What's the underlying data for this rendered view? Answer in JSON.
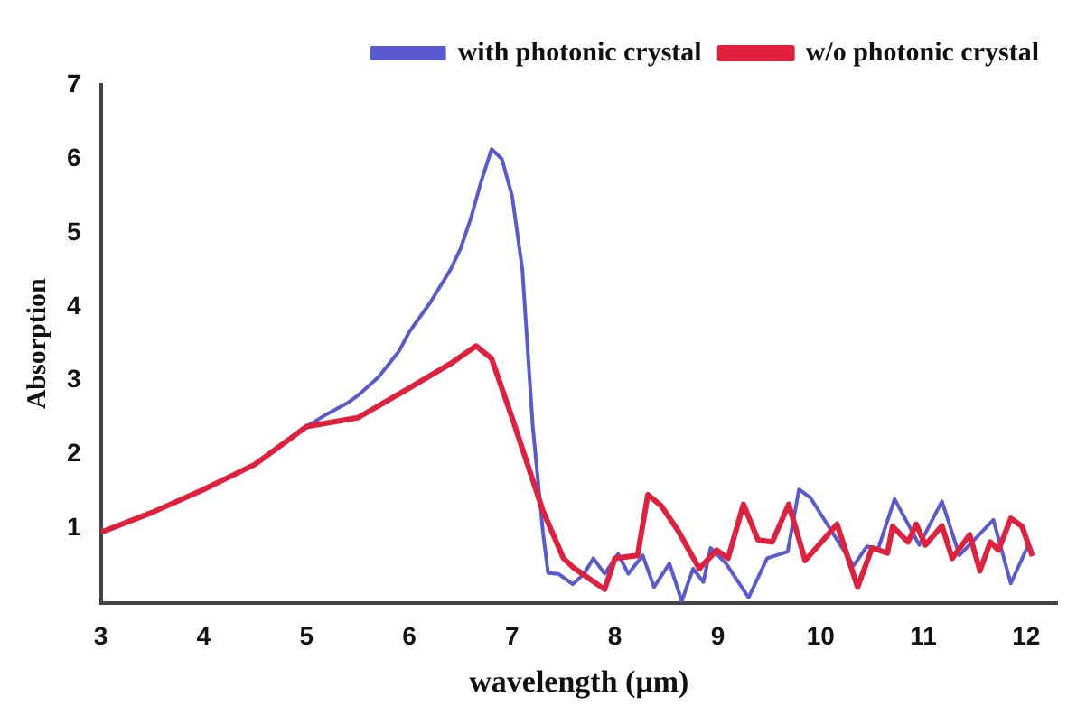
{
  "chart_data": {
    "type": "line",
    "xlabel": "wavelength (μm)",
    "ylabel": "Absorption",
    "xlim": [
      3,
      12.3
    ],
    "xticks": [
      3,
      4,
      5,
      6,
      7,
      8,
      9,
      10,
      11,
      12
    ],
    "ylim": [
      0,
      7
    ],
    "yticks": [
      1,
      2,
      3,
      4,
      5,
      6,
      7
    ],
    "grid": false,
    "legend": "top right",
    "marker": "none",
    "line_style": "solid",
    "series": [
      {
        "name": "with photonic crystal",
        "color": "#5a5ad0",
        "x": [
          5,
          5.2,
          5.4,
          5.5,
          5.7,
          5.9,
          6,
          6.2,
          6.4,
          6.5,
          6.6,
          6.7,
          6.8,
          6.9,
          7,
          7.1,
          7.2,
          7.3,
          7.35,
          7.45,
          7.59,
          7.7,
          7.79,
          7.9,
          8.03,
          8.13,
          8.27,
          8.38,
          8.53,
          8.65,
          8.76,
          8.86,
          8.93,
          9.08,
          9.3,
          9.48,
          9.68,
          9.79,
          9.9,
          10.32,
          10.45,
          10.56,
          10.72,
          10.96,
          11.18,
          11.35,
          11.68,
          11.85,
          12.02
        ],
        "values": [
          2.38,
          2.55,
          2.7,
          2.8,
          3.05,
          3.4,
          3.66,
          4.05,
          4.5,
          4.79,
          5.2,
          5.7,
          6.13,
          6.0,
          5.5,
          4.5,
          2.4,
          0.95,
          0.4,
          0.39,
          0.25,
          0.39,
          0.6,
          0.39,
          0.66,
          0.39,
          0.64,
          0.21,
          0.53,
          0.02,
          0.46,
          0.28,
          0.74,
          0.53,
          0.07,
          0.6,
          0.69,
          1.53,
          1.42,
          0.5,
          0.76,
          0.73,
          1.4,
          0.78,
          1.37,
          0.64,
          1.12,
          0.26,
          0.78
        ]
      },
      {
        "name": "w/o photonic crystal",
        "color": "#e0203c",
        "x": [
          3,
          3.5,
          4,
          4.5,
          5,
          5.5,
          6,
          6.4,
          6.65,
          6.8,
          7,
          7.3,
          7.5,
          7.6,
          7.9,
          8.0,
          8.22,
          8.32,
          8.45,
          8.62,
          8.82,
          8.99,
          9.1,
          9.25,
          9.39,
          9.53,
          9.69,
          9.85,
          10.16,
          10.36,
          10.5,
          10.65,
          10.7,
          10.85,
          10.93,
          11.02,
          11.18,
          11.28,
          11.45,
          11.55,
          11.65,
          11.73,
          11.85,
          11.96,
          12.06
        ],
        "values": [
          0.95,
          1.22,
          1.53,
          1.87,
          2.38,
          2.5,
          2.9,
          3.23,
          3.47,
          3.3,
          2.5,
          1.24,
          0.6,
          0.47,
          0.18,
          0.6,
          0.64,
          1.46,
          1.31,
          0.96,
          0.46,
          0.71,
          0.6,
          1.33,
          0.85,
          0.82,
          1.33,
          0.57,
          1.06,
          0.21,
          0.74,
          0.67,
          1.03,
          0.82,
          1.06,
          0.78,
          1.04,
          0.6,
          0.92,
          0.43,
          0.82,
          0.71,
          1.14,
          1.03,
          0.63
        ]
      }
    ]
  }
}
